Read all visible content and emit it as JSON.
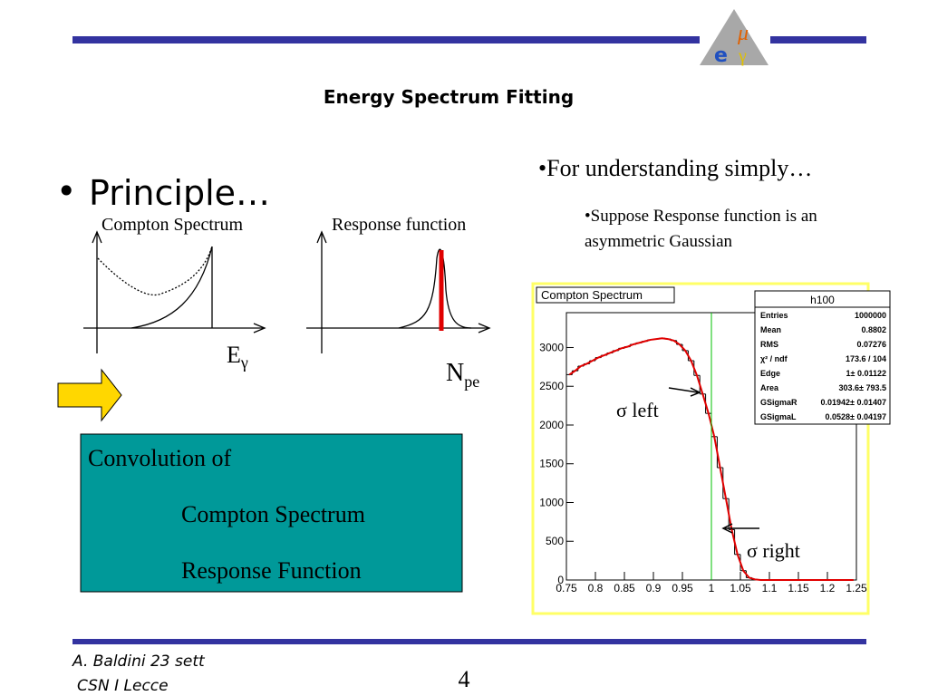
{
  "header": {
    "title": "Energy Spectrum Fitting",
    "logo": {
      "mu": "μ",
      "e": "e",
      "gamma": "γ"
    }
  },
  "slide": {
    "principle": "Principle…",
    "compton_label": "Compton Spectrum",
    "response_label": "Response function",
    "e_gamma": {
      "base": "E",
      "sub": "γ"
    },
    "n_pe": {
      "base": "N",
      "sub": "pe"
    },
    "convolution": {
      "line1": "Convolution of",
      "line2": "Compton Spectrum",
      "line3": "Response Function"
    },
    "understanding": "•For understanding simply…",
    "suppose": {
      "line1": "•Suppose Response function is an",
      "line2": "asymmetric Gaussian"
    },
    "sigma_left": "σ left",
    "sigma_right": "σ right"
  },
  "histogram": {
    "type": "histogram",
    "title": "Compton Spectrum",
    "stats_title": "h100",
    "stats": [
      [
        "Entries",
        "1000000"
      ],
      [
        "Mean",
        "0.8802"
      ],
      [
        "RMS",
        "0.07276"
      ],
      [
        "χ² / ndf",
        "173.6 / 104"
      ],
      [
        "Edge",
        "1± 0.01122"
      ],
      [
        "Area",
        "303.6± 793.5"
      ],
      [
        "GSigmaR",
        "0.01942± 0.01407"
      ],
      [
        "GSigmaL",
        "0.0528± 0.04197"
      ]
    ],
    "bins": [
      0.75,
      0.76,
      0.77,
      0.78,
      0.79,
      0.8,
      0.81,
      0.82,
      0.83,
      0.84,
      0.85,
      0.86,
      0.87,
      0.88,
      0.89,
      0.9,
      0.91,
      0.92,
      0.93,
      0.94,
      0.95,
      0.96,
      0.97,
      0.98,
      0.99,
      1,
      1.01,
      1.02,
      1.03,
      1.04,
      1.05,
      1.06,
      1.07,
      1.08,
      1.09,
      1.1,
      1.11,
      1.12,
      1.13,
      1.14,
      1.15,
      1.16,
      1.17,
      1.18,
      1.19,
      1.2,
      1.21,
      1.22,
      1.23,
      1.24,
      1.25
    ],
    "values": [
      2650,
      2700,
      2760,
      2790,
      2830,
      2870,
      2900,
      2930,
      2960,
      2990,
      3010,
      3040,
      3060,
      3080,
      3100,
      3110,
      3120,
      3110,
      3090,
      3040,
      2960,
      2830,
      2640,
      2400,
      2150,
      1850,
      1450,
      1050,
      650,
      330,
      120,
      30,
      8,
      0,
      0,
      0,
      0,
      0,
      0,
      0,
      0,
      0,
      0,
      0,
      0,
      0,
      0,
      0,
      0,
      0
    ],
    "color": "#000000",
    "fit_color": "#e00000",
    "edge_marker": 1,
    "xlim": [
      0.75,
      1.25
    ],
    "ylim": [
      0,
      3450
    ],
    "xticks": [
      0.75,
      0.8,
      0.85,
      0.9,
      0.95,
      1,
      1.05,
      1.1,
      1.15,
      1.2,
      1.25
    ],
    "yticks": [
      0,
      500,
      1000,
      1500,
      2000,
      2500,
      3000
    ]
  },
  "footer": {
    "author": "A.  Baldini 23 sett",
    "place": "CSN I  Lecce",
    "page": "4"
  }
}
